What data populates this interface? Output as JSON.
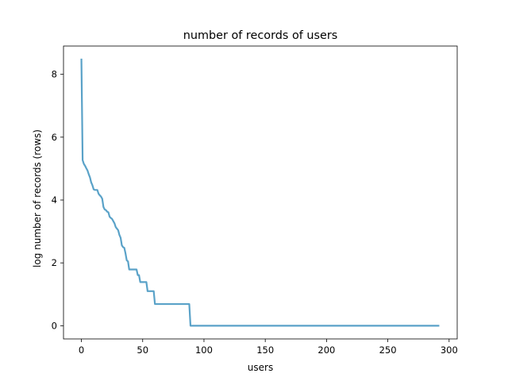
{
  "chart_data": {
    "type": "line",
    "title": "number of records of users",
    "xlabel": "users",
    "ylabel": "log number of records (rows)",
    "xlim": [
      -14.6,
      306.6
    ],
    "ylim": [
      -0.42,
      8.9
    ],
    "xticks": [
      0,
      50,
      100,
      150,
      200,
      250,
      300
    ],
    "yticks": [
      0,
      2,
      4,
      6,
      8
    ],
    "grid": false,
    "legend": "none",
    "line_color": "#5aa2c8",
    "series": [
      {
        "points": [
          [
            0,
            8.5
          ],
          [
            1,
            5.27
          ],
          [
            2,
            5.15
          ],
          [
            3,
            5.09
          ],
          [
            4,
            5.01
          ],
          [
            5,
            4.94
          ],
          [
            6,
            4.82
          ],
          [
            7,
            4.72
          ],
          [
            8,
            4.56
          ],
          [
            9,
            4.47
          ],
          [
            10,
            4.34
          ],
          [
            11,
            4.32
          ],
          [
            12,
            4.32
          ],
          [
            13,
            4.32
          ],
          [
            14,
            4.2
          ],
          [
            15,
            4.15
          ],
          [
            16,
            4.11
          ],
          [
            17,
            4.04
          ],
          [
            18,
            3.78
          ],
          [
            19,
            3.7
          ],
          [
            20,
            3.68
          ],
          [
            21,
            3.63
          ],
          [
            22,
            3.61
          ],
          [
            23,
            3.47
          ],
          [
            24,
            3.43
          ],
          [
            25,
            3.4
          ],
          [
            26,
            3.33
          ],
          [
            27,
            3.26
          ],
          [
            28,
            3.14
          ],
          [
            29,
            3.09
          ],
          [
            30,
            3.04
          ],
          [
            31,
            2.89
          ],
          [
            32,
            2.8
          ],
          [
            33,
            2.56
          ],
          [
            34,
            2.5
          ],
          [
            35,
            2.48
          ],
          [
            36,
            2.3
          ],
          [
            37,
            2.08
          ],
          [
            38,
            2.05
          ],
          [
            39,
            1.79
          ],
          [
            40,
            1.79
          ],
          [
            41,
            1.79
          ],
          [
            42,
            1.79
          ],
          [
            43,
            1.79
          ],
          [
            44,
            1.79
          ],
          [
            45,
            1.79
          ],
          [
            46,
            1.61
          ],
          [
            47,
            1.61
          ],
          [
            48,
            1.39
          ],
          [
            49,
            1.39
          ],
          [
            50,
            1.39
          ],
          [
            51,
            1.39
          ],
          [
            52,
            1.39
          ],
          [
            53,
            1.39
          ],
          [
            54,
            1.1
          ],
          [
            55,
            1.1
          ],
          [
            56,
            1.1
          ],
          [
            57,
            1.1
          ],
          [
            58,
            1.1
          ],
          [
            59,
            1.1
          ],
          [
            60,
            0.69
          ],
          [
            88,
            0.69
          ],
          [
            89,
            0
          ],
          [
            292,
            0
          ]
        ]
      }
    ]
  }
}
